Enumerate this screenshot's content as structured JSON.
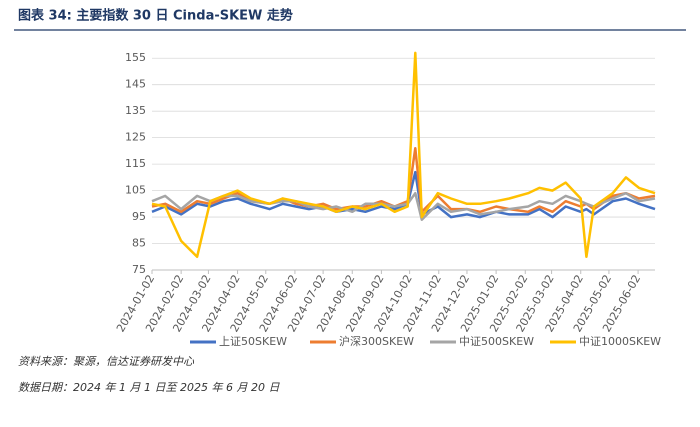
{
  "chart_data": {
    "type": "line",
    "title": "图表 34:  主要指数 30 日 Cinda-SKEW 走势",
    "source": "资料来源：聚源，信达证券研发中心",
    "date_note": "数据日期：2024 年 1 月 1 日至 2025 年 6 月 20 日",
    "x": [
      "2024-01-02",
      "2024-01-16",
      "2024-02-02",
      "2024-02-19",
      "2024-03-04",
      "2024-03-18",
      "2024-04-02",
      "2024-04-16",
      "2024-05-06",
      "2024-05-20",
      "2024-06-03",
      "2024-06-17",
      "2024-07-02",
      "2024-07-16",
      "2024-08-02",
      "2024-08-16",
      "2024-09-02",
      "2024-09-16",
      "2024-09-30",
      "2024-10-08",
      "2024-10-15",
      "2024-11-01",
      "2024-11-15",
      "2024-12-02",
      "2024-12-16",
      "2025-01-02",
      "2025-01-16",
      "2025-02-05",
      "2025-02-17",
      "2025-03-03",
      "2025-03-17",
      "2025-04-02",
      "2025-04-08",
      "2025-04-16",
      "2025-05-06",
      "2025-05-20",
      "2025-06-03",
      "2025-06-20"
    ],
    "xlim": [
      "2024-01-02",
      "2025-06-20"
    ],
    "xticks": [
      "2024-01-02",
      "2024-02-02",
      "2024-03-02",
      "2024-04-02",
      "2024-05-02",
      "2024-06-02",
      "2024-07-02",
      "2024-08-02",
      "2024-09-02",
      "2024-10-02",
      "2024-11-02",
      "2024-12-02",
      "2025-01-02",
      "2025-02-02",
      "2025-03-02",
      "2025-04-02",
      "2025-05-02",
      "2025-06-02"
    ],
    "ylim": [
      75,
      160
    ],
    "yticks": [
      75,
      85,
      95,
      105,
      115,
      125,
      135,
      145,
      155
    ],
    "grid": true,
    "legend": "bottom",
    "series": [
      {
        "name": "上证50SKEW",
        "color": "#4472c4",
        "values": [
          97,
          99,
          96,
          100,
          99,
          101,
          102,
          100,
          98,
          100,
          99,
          98,
          99,
          97,
          98,
          97,
          99,
          98,
          100,
          112,
          96,
          99,
          95,
          96,
          95,
          97,
          96,
          96,
          98,
          95,
          99,
          97,
          98,
          96,
          101,
          102,
          100,
          98
        ]
      },
      {
        "name": "沪深300SKEW",
        "color": "#ed7d31",
        "values": [
          99,
          100,
          97,
          101,
          100,
          102,
          104,
          101,
          100,
          102,
          100,
          99,
          100,
          98,
          99,
          99,
          101,
          99,
          101,
          121,
          97,
          103,
          98,
          98,
          97,
          99,
          98,
          97,
          99,
          97,
          101,
          99,
          100,
          98,
          103,
          104,
          102,
          103
        ]
      },
      {
        "name": "中证500SKEW",
        "color": "#a5a5a5",
        "values": [
          101,
          103,
          98,
          103,
          101,
          103,
          103,
          101,
          100,
          101,
          101,
          99,
          98,
          99,
          97,
          100,
          100,
          99,
          100,
          104,
          94,
          100,
          97,
          98,
          96,
          97,
          98,
          99,
          101,
          100,
          103,
          101,
          100,
          99,
          102,
          104,
          101,
          102
        ]
      },
      {
        "name": "中证1000SKEW",
        "color": "#ffc000",
        "values": [
          100,
          99,
          86,
          80,
          101,
          103,
          105,
          102,
          100,
          102,
          101,
          100,
          99,
          97,
          99,
          98,
          100,
          97,
          99,
          157,
          95,
          104,
          102,
          100,
          100,
          101,
          102,
          104,
          106,
          105,
          108,
          102,
          80,
          99,
          104,
          110,
          106,
          104
        ]
      }
    ]
  }
}
